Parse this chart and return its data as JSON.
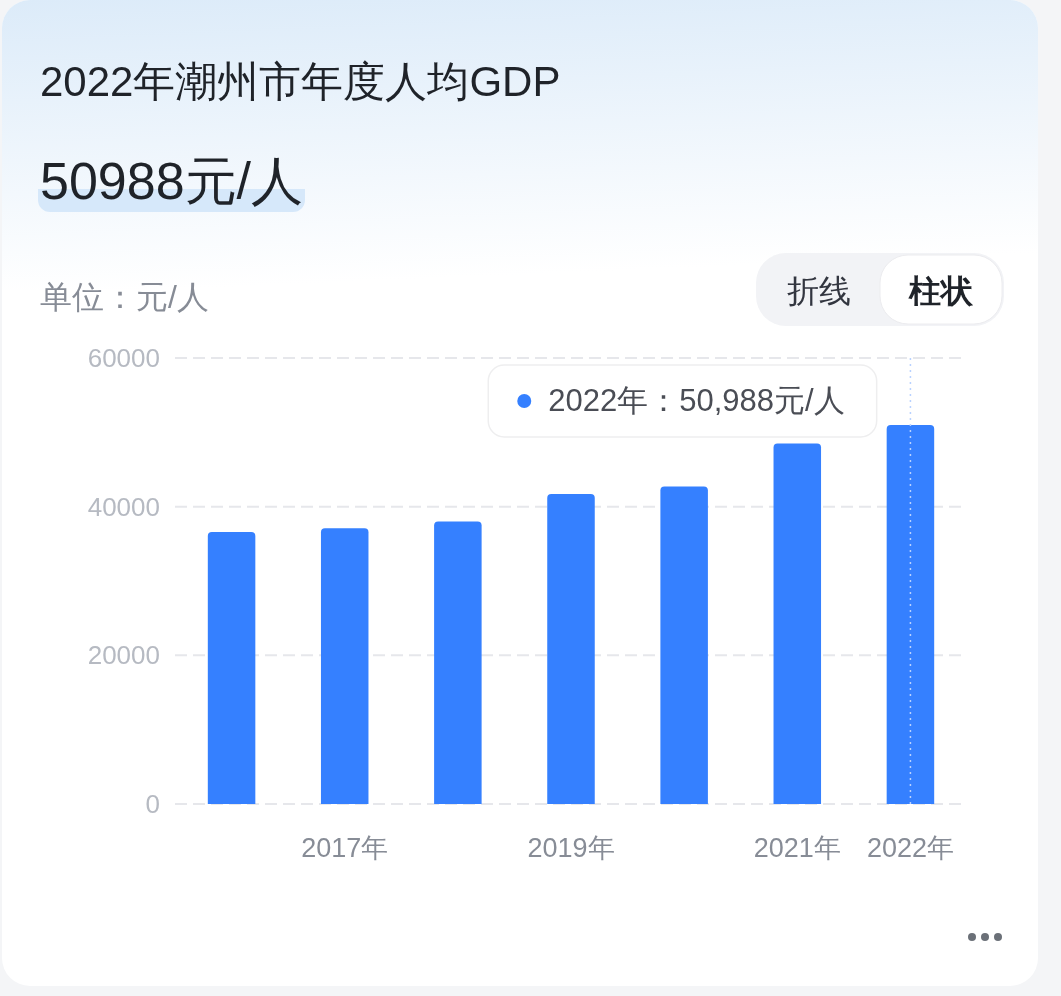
{
  "chart_data": {
    "type": "bar",
    "title": "2022年潮州市年度人均GDP",
    "subtitle": "50988元/人",
    "ylabel": "单位：元/人",
    "categories": [
      null,
      "2017年",
      null,
      "2019年",
      null,
      "2021年",
      "2022年"
    ],
    "values": [
      36600,
      37100,
      38000,
      41700,
      42700,
      48500,
      50988
    ],
    "color": "#3580ff",
    "ylim": [
      0,
      60000
    ],
    "yticks": [
      0,
      20000,
      40000,
      60000
    ],
    "grid": "y",
    "ref_lines": [
      {
        "axis": "x",
        "value": "2022年",
        "color": "#b9d2ff",
        "line_style": "dotted"
      }
    ],
    "annotations": [
      {
        "text": "2022年：50,988元/人",
        "x": "2022年",
        "y": 50988
      },
      "折线",
      "柱状"
    ]
  }
}
